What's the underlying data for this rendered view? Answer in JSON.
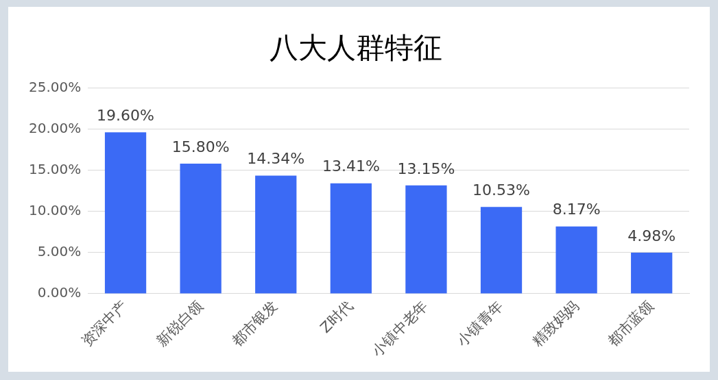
{
  "chart_data": {
    "type": "bar",
    "title": "八大人群特征",
    "categories": [
      "资深中产",
      "新锐白领",
      "都市银发",
      "Z时代",
      "小镇中老年",
      "小镇青年",
      "精致妈妈",
      "都市蓝领"
    ],
    "values": [
      19.6,
      15.8,
      14.34,
      13.41,
      13.15,
      10.53,
      8.17,
      4.98
    ],
    "value_labels": [
      "19.60%",
      "15.80%",
      "14.34%",
      "13.41%",
      "13.15%",
      "10.53%",
      "8.17%",
      "4.98%"
    ],
    "color": "#3b6af5",
    "ylim": [
      0,
      25
    ],
    "yticks": [
      {
        "value": 0,
        "label": "0.00%"
      },
      {
        "value": 5,
        "label": "5.00%"
      },
      {
        "value": 10,
        "label": "10.00%"
      },
      {
        "value": 15,
        "label": "15.00%"
      },
      {
        "value": 20,
        "label": "20.00%"
      },
      {
        "value": 25,
        "label": "25.00%"
      }
    ],
    "grid": "y",
    "legend": false
  }
}
